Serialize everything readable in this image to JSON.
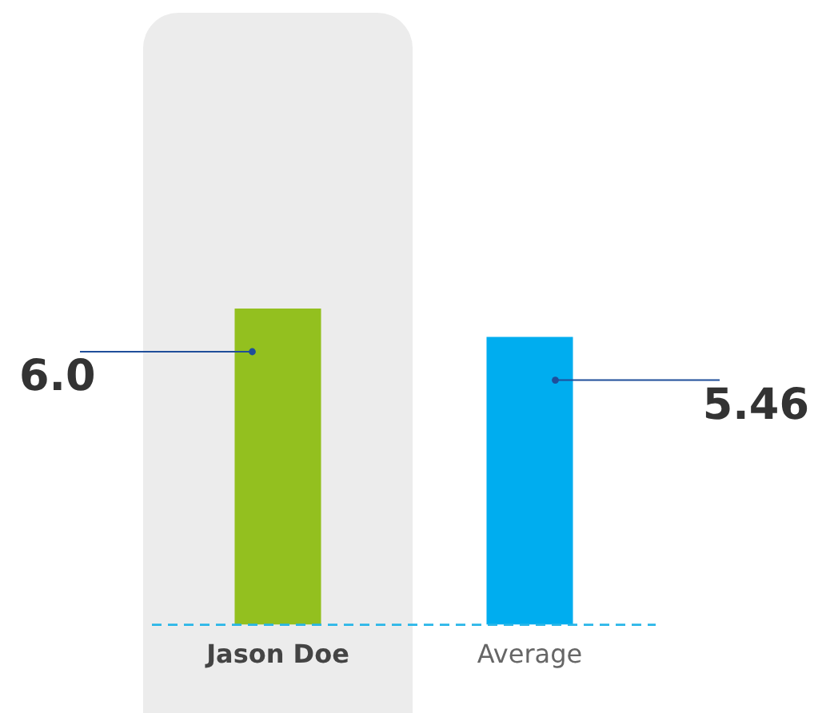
{
  "chart_data": {
    "type": "bar",
    "categories": [
      "Jason Doe",
      "Average"
    ],
    "values": [
      6.0,
      5.46
    ],
    "colors": [
      "#93c01f",
      "#00adef"
    ],
    "value_labels": [
      "6.0",
      "5.46"
    ],
    "tick_labels": "x",
    "grid": false,
    "legend": false,
    "bands": [
      {
        "axis": "x",
        "from": "Jason Doe",
        "to": "Jason Doe",
        "color": "#ececec"
      }
    ],
    "ref_lines": [
      {
        "axis": "y",
        "value": 0,
        "color": "#29b6e8",
        "line_style": "dashed"
      }
    ]
  }
}
